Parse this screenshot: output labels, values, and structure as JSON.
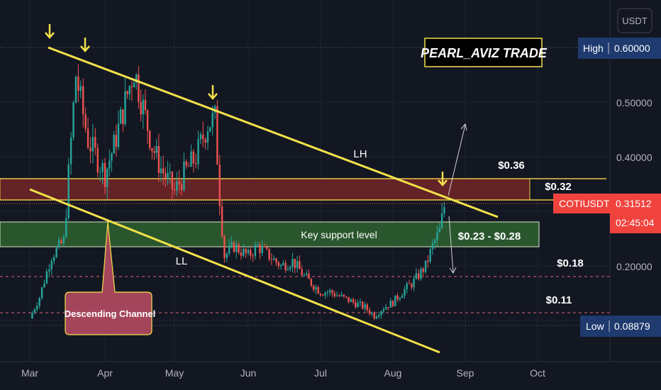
{
  "chart_data": {
    "type": "candlestick",
    "symbol": "COTIUSDT",
    "currency_label": "USDT",
    "brand": "PEARL_AVIZ TRADE",
    "x_ticks": [
      "Mar",
      "Apr",
      "May",
      "Jun",
      "Jul",
      "Aug",
      "Sep",
      "Oct"
    ],
    "y_ticks": [
      "0.50000",
      "0.40000",
      "0.20000"
    ],
    "high": {
      "label": "High",
      "value": "0.60000"
    },
    "low": {
      "label": "Low",
      "value": "0.08879"
    },
    "current": {
      "symbol": "COTIUSDT",
      "price": "0.31512",
      "countdown": "02:45:04"
    },
    "zones": [
      {
        "name": "resistance",
        "from": 0.32,
        "to": 0.36
      },
      {
        "name": "support",
        "from": 0.23,
        "to": 0.28,
        "label": "Key support level"
      }
    ],
    "levels": [
      0.18,
      0.11
    ],
    "annotations": {
      "lh": "LH",
      "ll": "LL",
      "descending_channel": "Descending Channel",
      "price_036": "$0.36",
      "price_032": "$0.32",
      "price_range": "$0.23 - $0.28",
      "price_018": "$0.18",
      "price_011": "$0.11"
    },
    "series": [
      {
        "date": "Mar 1",
        "value": 0.1
      },
      {
        "date": "Mar 5",
        "value": 0.14
      },
      {
        "date": "Mar 10",
        "value": 0.22
      },
      {
        "date": "Mar 15",
        "value": 0.25
      },
      {
        "date": "Mar 20",
        "value": 0.55
      },
      {
        "date": "Mar 25",
        "value": 0.43
      },
      {
        "date": "Apr 1",
        "value": 0.37
      },
      {
        "date": "Apr 5",
        "value": 0.42
      },
      {
        "date": "Apr 10",
        "value": 0.5
      },
      {
        "date": "Apr 14",
        "value": 0.56
      },
      {
        "date": "Apr 18",
        "value": 0.49
      },
      {
        "date": "Apr 22",
        "value": 0.42
      },
      {
        "date": "Apr 26",
        "value": 0.38
      },
      {
        "date": "May 1",
        "value": 0.34
      },
      {
        "date": "May 5",
        "value": 0.37
      },
      {
        "date": "May 10",
        "value": 0.4
      },
      {
        "date": "May 15",
        "value": 0.46
      },
      {
        "date": "May 18",
        "value": 0.47
      },
      {
        "date": "May 20",
        "value": 0.33
      },
      {
        "date": "May 22",
        "value": 0.22
      },
      {
        "date": "May 26",
        "value": 0.24
      },
      {
        "date": "Jun 1",
        "value": 0.22
      },
      {
        "date": "Jun 5",
        "value": 0.24
      },
      {
        "date": "Jun 10",
        "value": 0.22
      },
      {
        "date": "Jun 15",
        "value": 0.2
      },
      {
        "date": "Jun 20",
        "value": 0.21
      },
      {
        "date": "Jun 25",
        "value": 0.18
      },
      {
        "date": "Jul 1",
        "value": 0.15
      },
      {
        "date": "Jul 5",
        "value": 0.15
      },
      {
        "date": "Jul 10",
        "value": 0.14
      },
      {
        "date": "Jul 15",
        "value": 0.13
      },
      {
        "date": "Jul 20",
        "value": 0.12
      },
      {
        "date": "Jul 24",
        "value": 0.105
      },
      {
        "date": "Jul 28",
        "value": 0.12
      },
      {
        "date": "Aug 1",
        "value": 0.13
      },
      {
        "date": "Aug 5",
        "value": 0.15
      },
      {
        "date": "Aug 10",
        "value": 0.17
      },
      {
        "date": "Aug 15",
        "value": 0.2
      },
      {
        "date": "Aug 18",
        "value": 0.24
      },
      {
        "date": "Aug 21",
        "value": 0.27
      },
      {
        "date": "Aug 23",
        "value": 0.315
      }
    ]
  }
}
